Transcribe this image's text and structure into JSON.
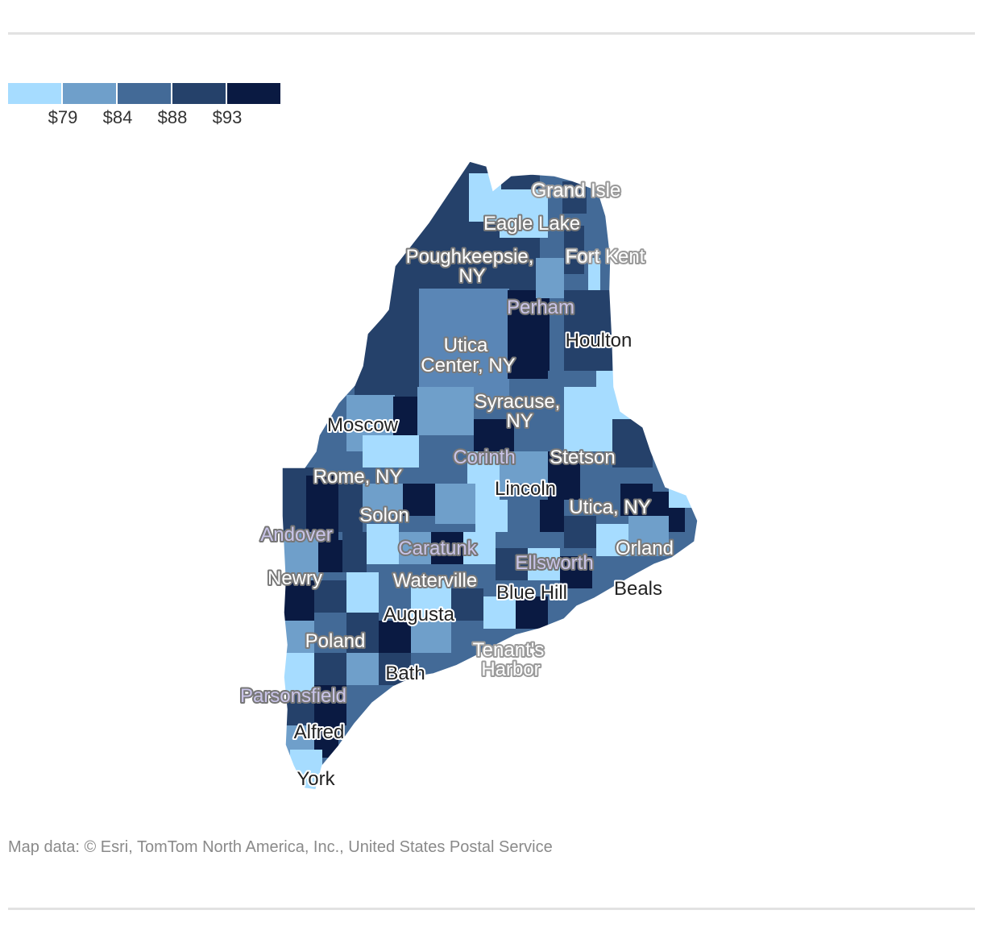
{
  "legend": {
    "colors": [
      "#a6dcff",
      "#6f9fca",
      "#436a97",
      "#25416a",
      "#0a1a42"
    ],
    "labels": [
      "$79",
      "$84",
      "$88",
      "$93"
    ]
  },
  "places": [
    {
      "name": "Grand Isle",
      "style": "lightoutline"
    },
    {
      "name": "Eagle Lake",
      "style": "white"
    },
    {
      "name": "Poughkeepsie,",
      "style": "white"
    },
    {
      "name": "NY",
      "style": "white"
    },
    {
      "name": "Fort Kent",
      "style": "lightoutline"
    },
    {
      "name": "Perham",
      "style": "lav"
    },
    {
      "name": "Utica",
      "style": "white"
    },
    {
      "name": "Center, NY",
      "style": "white"
    },
    {
      "name": "Houlton",
      "style": "dark"
    },
    {
      "name": "Syracuse,",
      "style": "white"
    },
    {
      "name": "NY",
      "style": "white"
    },
    {
      "name": "Moscow",
      "style": "dark"
    },
    {
      "name": "Corinth",
      "style": "lav"
    },
    {
      "name": "Stetson",
      "style": "white"
    },
    {
      "name": "Rome, NY",
      "style": "white"
    },
    {
      "name": "Lincoln",
      "style": "dark"
    },
    {
      "name": "Utica, NY",
      "style": "white"
    },
    {
      "name": "Solon",
      "style": "white"
    },
    {
      "name": "Andover",
      "style": "lav"
    },
    {
      "name": "Caratunk",
      "style": "lav"
    },
    {
      "name": "Orland",
      "style": "white"
    },
    {
      "name": "Ellsworth",
      "style": "lav"
    },
    {
      "name": "Newry",
      "style": "white"
    },
    {
      "name": "Waterville",
      "style": "white"
    },
    {
      "name": "Beals",
      "style": "dark"
    },
    {
      "name": "Blue Hill",
      "style": "dark"
    },
    {
      "name": "Augusta",
      "style": "dark"
    },
    {
      "name": "Poland",
      "style": "white"
    },
    {
      "name": "Tenant's",
      "style": "lightoutline"
    },
    {
      "name": "Harbor",
      "style": "lightoutline"
    },
    {
      "name": "Bath",
      "style": "dark"
    },
    {
      "name": "Parsonsfield",
      "style": "lav"
    },
    {
      "name": "Alfred",
      "style": "dark"
    },
    {
      "name": "York",
      "style": "dark"
    }
  ],
  "source": "Map data: © Esri, TomTom North America, Inc., United States Postal Service"
}
